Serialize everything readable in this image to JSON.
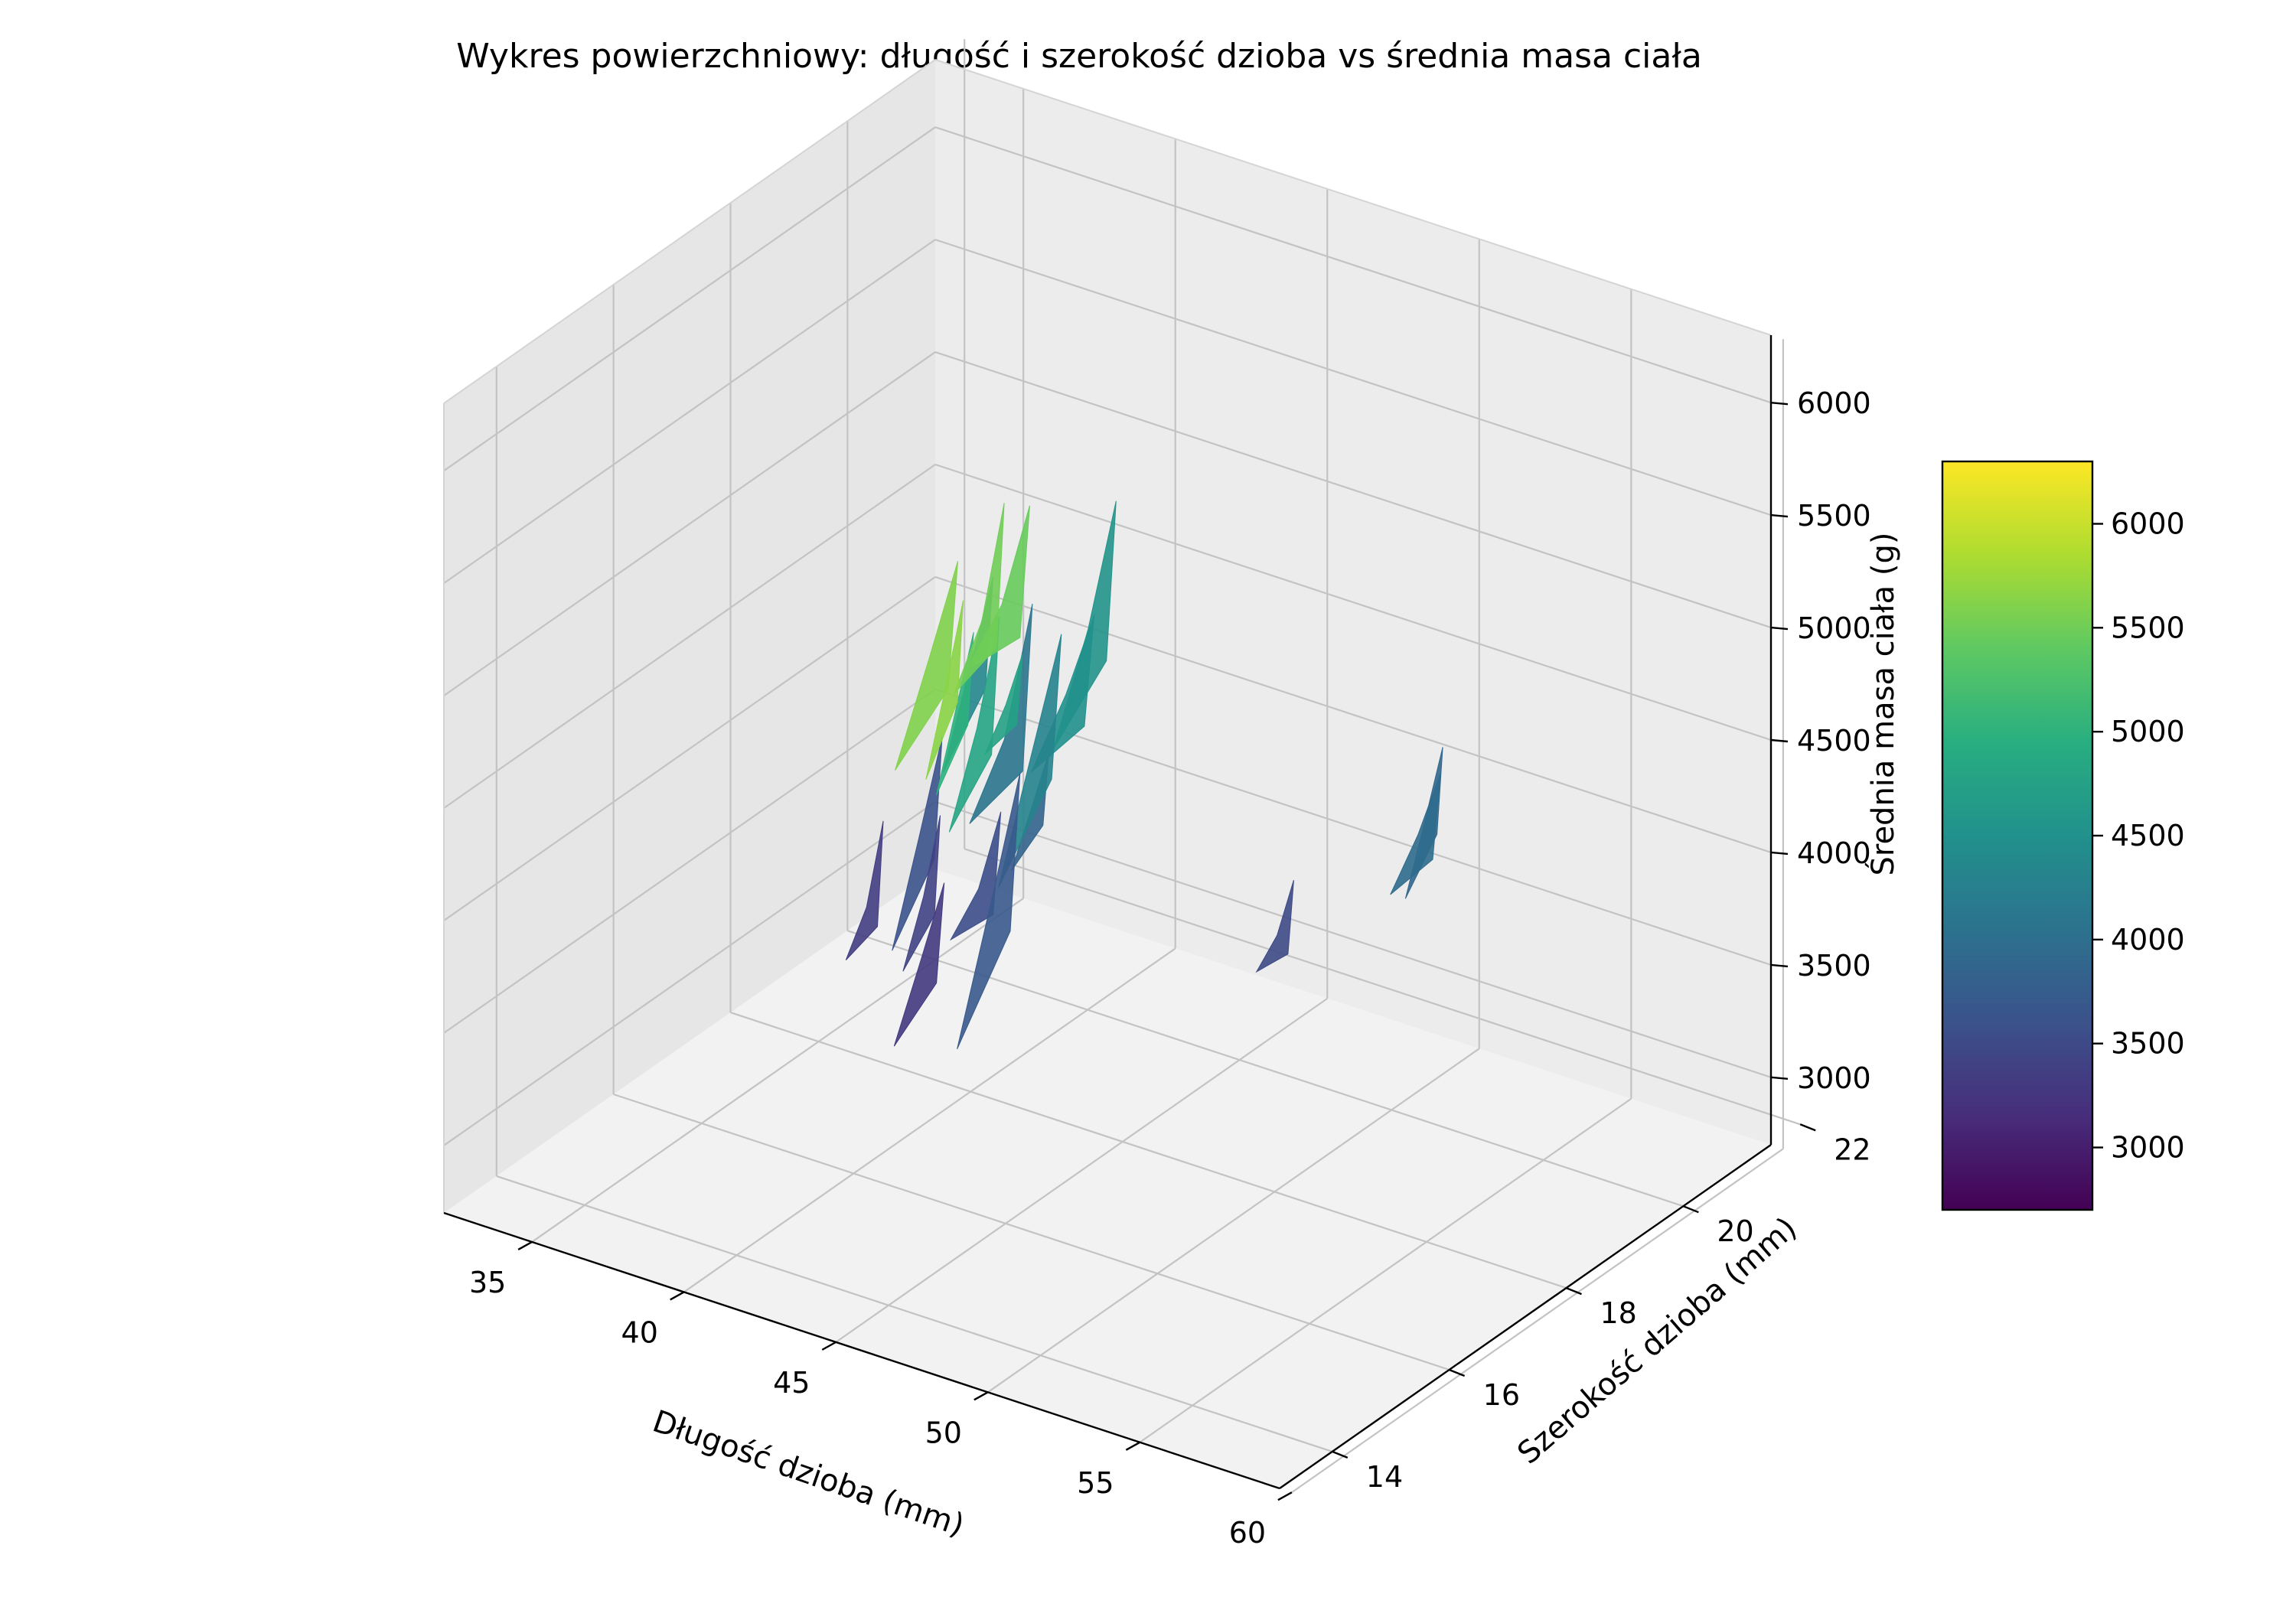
{
  "chart_data": {
    "type": "surface",
    "title": "Wykres powierzchniowy: długość i szerokość dzioba vs średnia masa ciała",
    "xlabel": "Długość dzioba (mm)",
    "ylabel": "Szerokość dzioba (mm)",
    "zlabel": "Średnia masa ciała (g)",
    "xlim": [
      32.1,
      59.6
    ],
    "ylim": [
      13.1,
      21.5
    ],
    "zlim": [
      2700,
      6300
    ],
    "x_ticks": [
      "35",
      "40",
      "45",
      "50",
      "55",
      "60"
    ],
    "y_ticks": [
      "14",
      "16",
      "18",
      "20",
      "22"
    ],
    "z_ticks": [
      "3000",
      "3500",
      "4000",
      "4500",
      "5000",
      "5500",
      "6000"
    ],
    "grid": true,
    "colormap": "viridis",
    "colorbar": {
      "min": 2700,
      "max": 6300,
      "ticks": [
        "3000",
        "3500",
        "4000",
        "4500",
        "5000",
        "5500",
        "6000"
      ]
    },
    "surface_patches": [
      {
        "x": 36.2,
        "y": 18.2,
        "z": 3350
      },
      {
        "x": 36.8,
        "y": 18.8,
        "z": 3600
      },
      {
        "x": 37.5,
        "y": 18.5,
        "z": 3400
      },
      {
        "x": 37.9,
        "y": 19.1,
        "z": 4350
      },
      {
        "x": 38.6,
        "y": 17.9,
        "z": 3300
      },
      {
        "x": 39.2,
        "y": 19.0,
        "z": 4100
      },
      {
        "x": 39.5,
        "y": 18.4,
        "z": 3550
      },
      {
        "x": 40.3,
        "y": 18.9,
        "z": 3850
      },
      {
        "x": 40.8,
        "y": 19.6,
        "z": 4550
      },
      {
        "x": 41.1,
        "y": 17.8,
        "z": 3700
      },
      {
        "x": 41.5,
        "y": 18.3,
        "z": 4300
      },
      {
        "x": 42.0,
        "y": 18.6,
        "z": 4500
      },
      {
        "x": 42.9,
        "y": 17.1,
        "z": 4750
      },
      {
        "x": 43.3,
        "y": 16.4,
        "z": 4800
      },
      {
        "x": 43.6,
        "y": 15.9,
        "z": 5000
      },
      {
        "x": 44.5,
        "y": 16.2,
        "z": 5450
      },
      {
        "x": 45.0,
        "y": 15.6,
        "z": 5500
      },
      {
        "x": 45.6,
        "y": 14.4,
        "z": 5600
      },
      {
        "x": 47.3,
        "y": 13.8,
        "z": 5650
      },
      {
        "x": 47.4,
        "y": 19.4,
        "z": 3500
      },
      {
        "x": 49.8,
        "y": 20.7,
        "z": 3900
      },
      {
        "x": 50.5,
        "y": 20.2,
        "z": 3950
      }
    ]
  }
}
